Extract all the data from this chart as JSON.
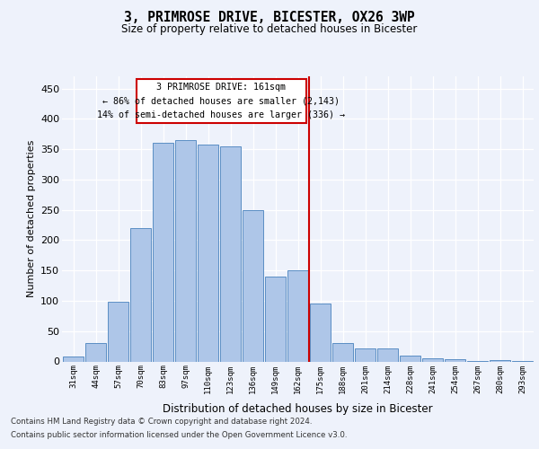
{
  "title": "3, PRIMROSE DRIVE, BICESTER, OX26 3WP",
  "subtitle": "Size of property relative to detached houses in Bicester",
  "xlabel": "Distribution of detached houses by size in Bicester",
  "ylabel": "Number of detached properties",
  "categories": [
    "31sqm",
    "44sqm",
    "57sqm",
    "70sqm",
    "83sqm",
    "97sqm",
    "110sqm",
    "123sqm",
    "136sqm",
    "149sqm",
    "162sqm",
    "175sqm",
    "188sqm",
    "201sqm",
    "214sqm",
    "228sqm",
    "241sqm",
    "254sqm",
    "267sqm",
    "280sqm",
    "293sqm"
  ],
  "values": [
    8,
    30,
    98,
    220,
    360,
    365,
    358,
    355,
    250,
    140,
    150,
    95,
    30,
    22,
    22,
    10,
    5,
    4,
    1,
    2,
    1
  ],
  "bar_color": "#aec6e8",
  "bar_edge_color": "#5b8ec4",
  "background_color": "#eef2fb",
  "grid_color": "#ffffff",
  "vline_x": 10.5,
  "vline_color": "#cc0000",
  "annotation_text": "3 PRIMROSE DRIVE: 161sqm\n← 86% of detached houses are smaller (2,143)\n14% of semi-detached houses are larger (336) →",
  "annotation_box_color": "#ffffff",
  "annotation_box_edge": "#cc0000",
  "footnote1": "Contains HM Land Registry data © Crown copyright and database right 2024.",
  "footnote2": "Contains public sector information licensed under the Open Government Licence v3.0.",
  "ylim": [
    0,
    470
  ],
  "yticks": [
    0,
    50,
    100,
    150,
    200,
    250,
    300,
    350,
    400,
    450
  ]
}
